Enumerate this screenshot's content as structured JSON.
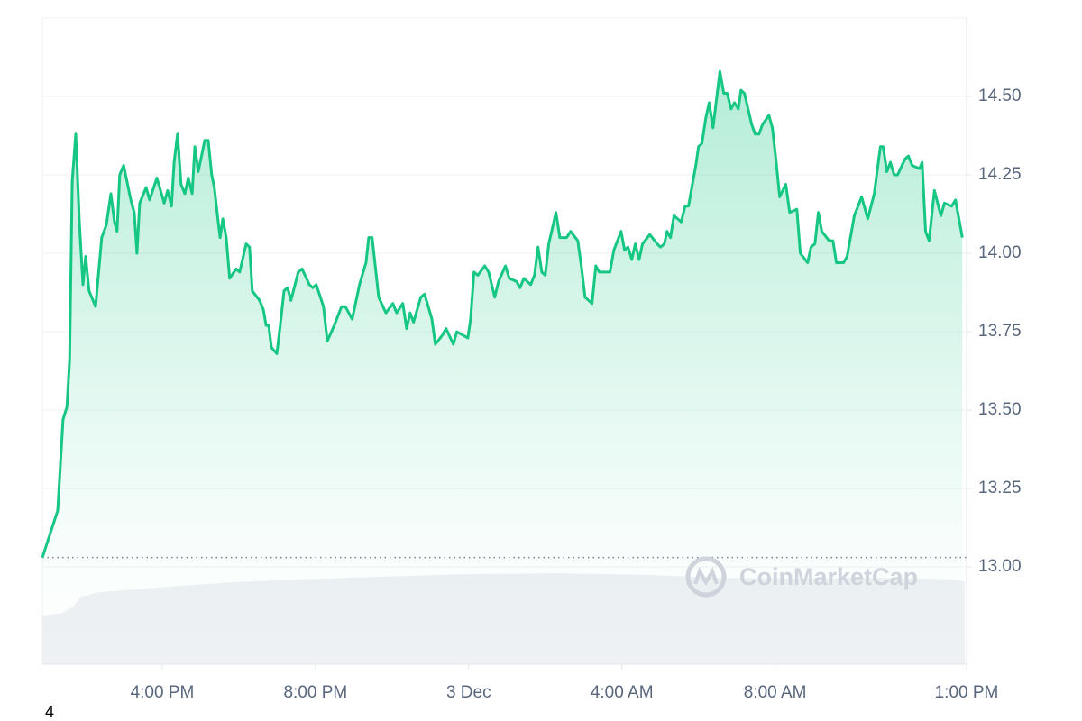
{
  "chart_data": {
    "type": "line",
    "watermark": "CoinMarketCap",
    "footnote": "4",
    "x": [
      12.87,
      13.11,
      13.27,
      13.41,
      13.51,
      13.58,
      13.65,
      13.74,
      13.84,
      13.93,
      14.0,
      14.09,
      14.26,
      14.42,
      14.54,
      14.66,
      14.75,
      14.82,
      14.89,
      14.99,
      15.18,
      15.27,
      15.34,
      15.41,
      15.58,
      15.67,
      15.86,
      16.05,
      16.14,
      16.24,
      16.31,
      16.4,
      16.49,
      16.59,
      16.68,
      16.78,
      16.85,
      16.94,
      17.11,
      17.2,
      17.29,
      17.36,
      17.46,
      17.51,
      17.58,
      17.67,
      17.76,
      17.93,
      18.02,
      18.19,
      18.28,
      18.35,
      18.54,
      18.64,
      18.71,
      18.78,
      18.85,
      18.99,
      19.08,
      19.18,
      19.27,
      19.36,
      19.55,
      19.65,
      19.84,
      19.93,
      20.02,
      20.21,
      20.31,
      20.49,
      20.68,
      20.78,
      20.96,
      21.15,
      21.32,
      21.39,
      21.48,
      21.65,
      21.84,
      22.02,
      22.12,
      22.28,
      22.38,
      22.47,
      22.56,
      22.75,
      22.85,
      23.04,
      23.13,
      23.32,
      23.41,
      23.6,
      23.69,
      23.98,
      24.05,
      24.14,
      24.24,
      24.42,
      24.52,
      24.68,
      24.78,
      24.96,
      25.06,
      25.25,
      25.34,
      25.44,
      25.62,
      25.72,
      25.81,
      25.91,
      26.0,
      26.09,
      26.28,
      26.38,
      26.56,
      26.66,
      26.85,
      26.94,
      27.04,
      27.22,
      27.32,
      27.41,
      27.69,
      27.79,
      27.98,
      28.07,
      28.16,
      28.26,
      28.35,
      28.45,
      28.54,
      28.73,
      28.92,
      29.01,
      29.11,
      29.18,
      29.27,
      29.36,
      29.55,
      29.65,
      29.74,
      29.84,
      29.93,
      30.0,
      30.09,
      30.19,
      30.28,
      30.38,
      30.47,
      30.56,
      30.66,
      30.75,
      30.85,
      30.94,
      31.04,
      31.11,
      31.2,
      31.39,
      31.48,
      31.58,
      31.67,
      31.84,
      31.93,
      32.02,
      32.12,
      32.28,
      32.38,
      32.57,
      32.66,
      32.85,
      32.94,
      33.04,
      33.13,
      33.22,
      33.41,
      33.51,
      33.6,
      33.79,
      33.88,
      34.07,
      34.26,
      34.42,
      34.59,
      34.75,
      34.82,
      34.92,
      35.01,
      35.11,
      35.2,
      35.39,
      35.48,
      35.58,
      35.77,
      35.84,
      35.93,
      36.02,
      36.16,
      36.33,
      36.42,
      36.61,
      36.71,
      36.8,
      36.89
    ],
    "series": [
      {
        "color": "#16c784",
        "values": [
          13.03,
          13.12,
          13.18,
          13.47,
          13.51,
          13.66,
          14.23,
          14.38,
          14.09,
          13.9,
          13.99,
          13.88,
          13.83,
          14.05,
          14.09,
          14.19,
          14.1,
          14.07,
          14.25,
          14.28,
          14.17,
          14.13,
          14.0,
          14.16,
          14.21,
          14.17,
          14.24,
          14.16,
          14.2,
          14.15,
          14.29,
          14.38,
          14.22,
          14.19,
          14.24,
          14.19,
          14.34,
          14.26,
          14.36,
          14.36,
          14.25,
          14.21,
          14.1,
          14.05,
          14.11,
          14.05,
          13.92,
          13.95,
          13.94,
          14.03,
          14.02,
          13.88,
          13.85,
          13.82,
          13.77,
          13.77,
          13.7,
          13.68,
          13.77,
          13.88,
          13.89,
          13.85,
          13.94,
          13.95,
          13.9,
          13.89,
          13.9,
          13.83,
          13.72,
          13.77,
          13.83,
          13.83,
          13.79,
          13.9,
          13.97,
          14.05,
          14.05,
          13.86,
          13.81,
          13.84,
          13.81,
          13.84,
          13.76,
          13.81,
          13.78,
          13.86,
          13.87,
          13.79,
          13.71,
          13.74,
          13.76,
          13.71,
          13.75,
          13.73,
          13.79,
          13.94,
          13.93,
          13.96,
          13.94,
          13.86,
          13.91,
          13.96,
          13.92,
          13.91,
          13.89,
          13.92,
          13.9,
          13.93,
          14.02,
          13.94,
          13.93,
          14.03,
          14.13,
          14.05,
          14.05,
          14.07,
          14.04,
          13.96,
          13.86,
          13.84,
          13.96,
          13.94,
          13.94,
          14.01,
          14.07,
          14.01,
          14.02,
          13.98,
          14.03,
          13.98,
          14.03,
          14.06,
          14.03,
          14.02,
          14.03,
          14.07,
          14.05,
          14.12,
          14.1,
          14.15,
          14.15,
          14.22,
          14.28,
          14.34,
          14.35,
          14.43,
          14.48,
          14.4,
          14.49,
          14.58,
          14.51,
          14.51,
          14.46,
          14.48,
          14.46,
          14.52,
          14.51,
          14.41,
          14.38,
          14.38,
          14.41,
          14.44,
          14.4,
          14.3,
          14.18,
          14.22,
          14.13,
          14.14,
          14.0,
          13.97,
          14.02,
          14.03,
          14.13,
          14.07,
          14.04,
          14.04,
          13.97,
          13.97,
          13.99,
          14.12,
          14.18,
          14.11,
          14.19,
          14.34,
          14.34,
          14.26,
          14.29,
          14.25,
          14.25,
          14.3,
          14.31,
          14.28,
          14.27,
          14.29,
          14.07,
          14.04,
          14.2,
          14.12,
          14.16,
          14.15,
          14.17,
          14.11,
          14.05
        ]
      }
    ],
    "baseline": 13.03,
    "xlim": [
      12.87,
      37.0
    ],
    "xticks": [
      {
        "value": 16,
        "label": "4:00 PM"
      },
      {
        "value": 20,
        "label": "8:00 PM"
      },
      {
        "value": 24,
        "label": "3 Dec"
      },
      {
        "value": 28,
        "label": "4:00 AM"
      },
      {
        "value": 32,
        "label": "8:00 AM"
      },
      {
        "value": 37,
        "label": "1:00 PM"
      }
    ],
    "ylim": [
      12.69,
      14.75
    ],
    "yticks": [
      {
        "value": 13,
        "label": "13.00"
      },
      13.25,
      {
        "value": 13.5,
        "label": "13.50"
      },
      13.75,
      {
        "value": 14,
        "label": "14.00"
      },
      14.25,
      {
        "value": 14.5,
        "label": "14.50"
      }
    ],
    "grid": true
  }
}
